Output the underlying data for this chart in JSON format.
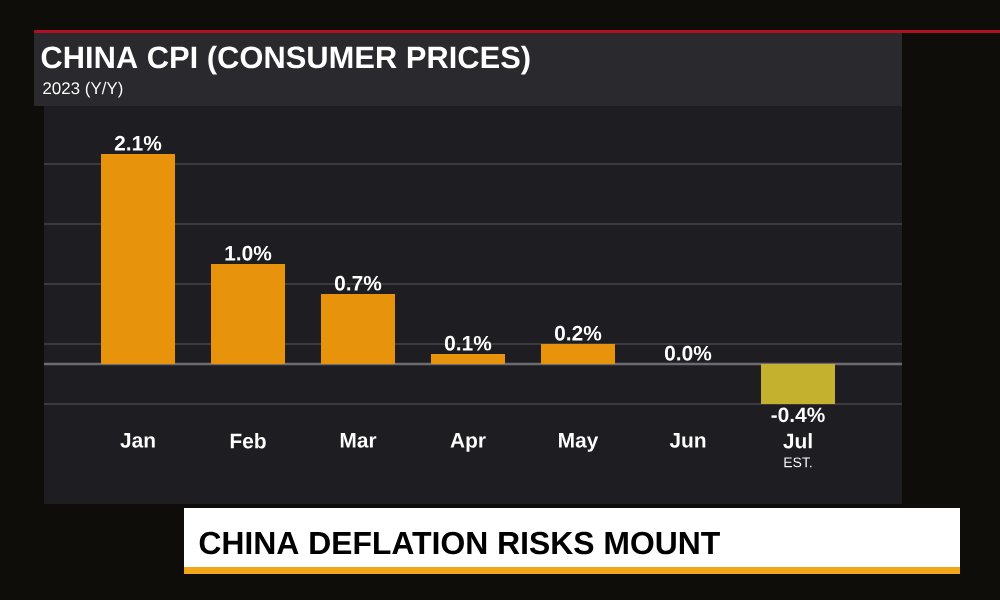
{
  "chart_data": {
    "type": "bar",
    "title": "CHINA CPI (CONSUMER PRICES)",
    "subtitle": "2023 (Y/Y)",
    "categories": [
      "Jan",
      "Feb",
      "Mar",
      "Apr",
      "May",
      "Jun",
      "Jul"
    ],
    "values": [
      2.1,
      1.0,
      0.7,
      0.1,
      0.2,
      0.0,
      -0.4
    ],
    "colors": [
      "#e8930c",
      "#e8930c",
      "#e8930c",
      "#e8930c",
      "#e8930c",
      "#e8930c",
      "#c4b22e"
    ],
    "value_labels": [
      "2.1%",
      "1.0%",
      "0.7%",
      "0.1%",
      "0.2%",
      "0.0%",
      "-0.4%"
    ],
    "yticks": [
      {
        "value": -0.4,
        "label": null
      },
      {
        "value": 0.2,
        "label": null
      },
      {
        "value": 0.8,
        "label": null
      },
      {
        "value": 1.4,
        "label": null
      },
      {
        "value": 2.0,
        "label": null
      }
    ],
    "grid": "y",
    "tick_labels": "x",
    "annotations": [
      "EST.",
      "CHINA DEFLATION RISKS MOUNT"
    ]
  }
}
